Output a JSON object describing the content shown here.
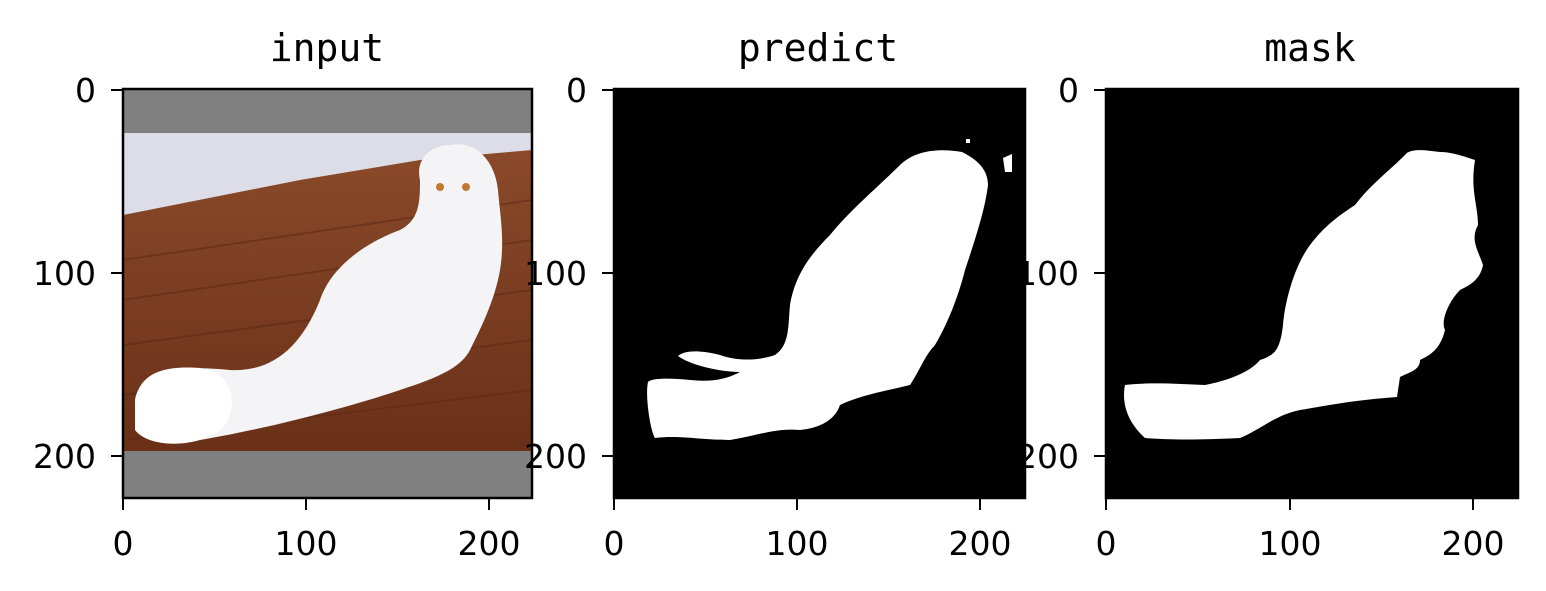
{
  "chart_data": [
    {
      "type": "image",
      "title": "input",
      "x_ticks": [
        0,
        100,
        200
      ],
      "y_ticks": [
        0,
        100,
        200
      ],
      "xlim": [
        0,
        224
      ],
      "ylim": [
        224,
        0
      ],
      "content": "photo of a white long-haired cat on a wooden floor, gray padding bands top and bottom",
      "padding_rows": {
        "top": [
          0,
          24
        ],
        "bottom": [
          198,
          224
        ]
      },
      "colors": {
        "padding": "#808080",
        "wall": "#dcdde6",
        "floor": "#7a3d22",
        "cat": "#f4f3f5"
      }
    },
    {
      "type": "image",
      "title": "predict",
      "x_ticks": [
        0,
        100,
        200
      ],
      "y_ticks": [
        0,
        100,
        200
      ],
      "xlim": [
        0,
        224
      ],
      "ylim": [
        224,
        0
      ],
      "content": "binary mask, white cat silhouette on black",
      "colors": {
        "background": "#000000",
        "foreground": "#ffffff"
      }
    },
    {
      "type": "image",
      "title": "mask",
      "x_ticks": [
        0,
        100,
        200
      ],
      "y_ticks": [
        0,
        100,
        200
      ],
      "xlim": [
        0,
        224
      ],
      "ylim": [
        224,
        0
      ],
      "content": "binary ground-truth mask, white cat silhouette on black",
      "colors": {
        "background": "#000000",
        "foreground": "#ffffff"
      }
    }
  ]
}
